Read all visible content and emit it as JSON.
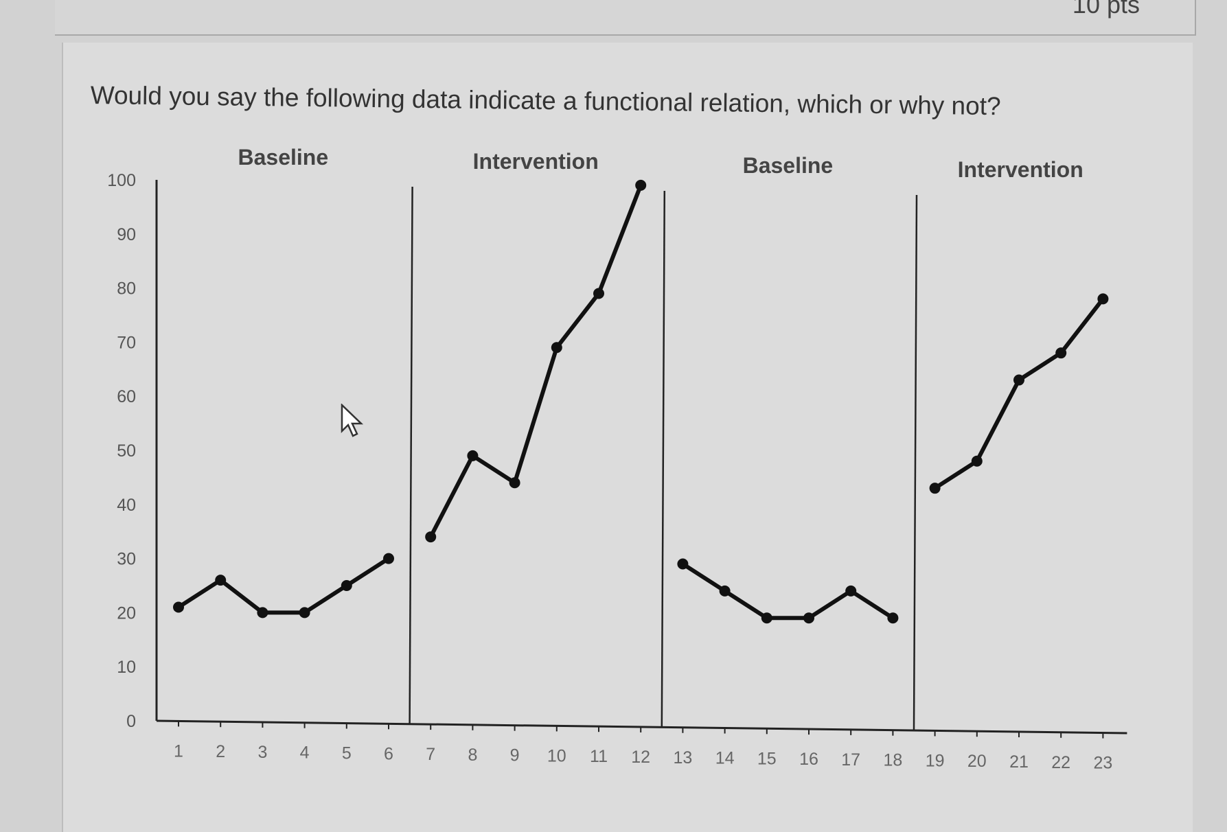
{
  "header": {
    "points": "10 pts"
  },
  "question": "Would you say the following data indicate a functional relation, which or why not?",
  "chart_data": {
    "type": "line",
    "title": "",
    "xlabel": "",
    "ylabel": "",
    "ylim": [
      0,
      100
    ],
    "yticks": [
      0,
      10,
      20,
      30,
      40,
      50,
      60,
      70,
      80,
      90,
      100
    ],
    "x": [
      1,
      2,
      3,
      4,
      5,
      6,
      7,
      8,
      9,
      10,
      11,
      12,
      13,
      14,
      15,
      16,
      17,
      18,
      19,
      20,
      21,
      22,
      23
    ],
    "phases": [
      {
        "label": "Baseline",
        "sessions": [
          1,
          2,
          3,
          4,
          5,
          6
        ],
        "values": [
          21,
          26,
          20,
          20,
          25,
          30
        ]
      },
      {
        "label": "Intervention",
        "sessions": [
          7,
          8,
          9,
          10,
          11,
          12
        ],
        "values": [
          34,
          49,
          44,
          69,
          79,
          99
        ]
      },
      {
        "label": "Baseline",
        "sessions": [
          13,
          14,
          15,
          16,
          17,
          18
        ],
        "values": [
          29,
          24,
          19,
          19,
          24,
          19
        ]
      },
      {
        "label": "Intervention",
        "sessions": [
          19,
          20,
          21,
          22,
          23
        ],
        "values": [
          43,
          48,
          63,
          68,
          78
        ]
      }
    ],
    "phase_change_lines": [
      6.5,
      12.5,
      18.5
    ],
    "grid": false,
    "line_color": "#111111"
  }
}
